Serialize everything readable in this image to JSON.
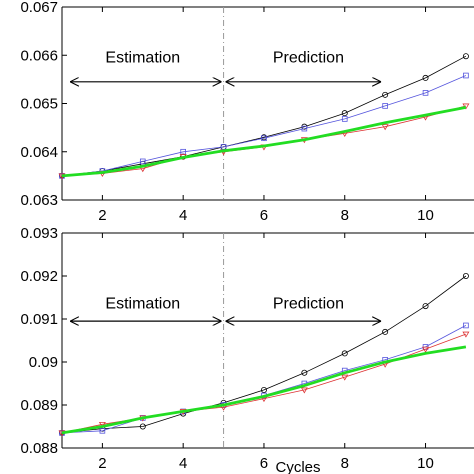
{
  "chart_data": [
    {
      "type": "line",
      "xlim": [
        1,
        11.2
      ],
      "ylim": [
        0.063,
        0.067
      ],
      "xticks": [
        2,
        4,
        6,
        8,
        10
      ],
      "yticks": [
        "0.063",
        "0.064",
        "0.065",
        "0.066",
        "0.067"
      ],
      "ylabel": "",
      "xlabel": "",
      "divider_x": 5,
      "annotations": [
        {
          "text": "Estimation",
          "x": 3.0,
          "y": 0.06585,
          "arrow_from": 1.2,
          "arrow_to": 4.95,
          "arrow_y": 0.06545
        },
        {
          "text": "Prediction",
          "x": 7.1,
          "y": 0.06585,
          "arrow_from": 5.05,
          "arrow_to": 8.9,
          "arrow_y": 0.06545
        }
      ],
      "series": [
        {
          "color": "#000000",
          "marker": "circle",
          "width": 0.8,
          "x": [
            1,
            2,
            3,
            4,
            5,
            6,
            7,
            8,
            9,
            10,
            11
          ],
          "y": [
            0.0635,
            0.0636,
            0.06375,
            0.0639,
            0.0641,
            0.0643,
            0.06452,
            0.0648,
            0.06518,
            0.06553,
            0.06598
          ]
        },
        {
          "color": "#5555dd",
          "marker": "square",
          "width": 0.8,
          "x": [
            1,
            2,
            3,
            4,
            5,
            6,
            7,
            8,
            9,
            10,
            11
          ],
          "y": [
            0.0635,
            0.0636,
            0.0638,
            0.064,
            0.0641,
            0.06428,
            0.06448,
            0.06468,
            0.06495,
            0.06522,
            0.06558
          ]
        },
        {
          "color": "#dd3333",
          "marker": "triangle-down",
          "width": 0.8,
          "x": [
            1,
            2,
            3,
            4,
            5,
            6,
            7,
            8,
            9,
            10,
            11
          ],
          "y": [
            0.0635,
            0.06355,
            0.06365,
            0.0639,
            0.064,
            0.0641,
            0.06425,
            0.06438,
            0.06452,
            0.06472,
            0.06495
          ]
        },
        {
          "color": "#22dd22",
          "marker": "none",
          "width": 2.8,
          "x": [
            1,
            2,
            3,
            4,
            5,
            6,
            7,
            8,
            9,
            10,
            11
          ],
          "y": [
            0.0635,
            0.06357,
            0.0637,
            0.06388,
            0.06402,
            0.06412,
            0.06425,
            0.06442,
            0.0646,
            0.06476,
            0.06492
          ]
        }
      ]
    },
    {
      "type": "line",
      "xlim": [
        1,
        11.2
      ],
      "ylim": [
        0.088,
        0.093
      ],
      "xticks": [
        2,
        4,
        6,
        8,
        10
      ],
      "yticks": [
        "0.088",
        "0.089",
        "0.09",
        "0.091",
        "0.092",
        "0.093"
      ],
      "ylabel": "",
      "xlabel": "Cycles",
      "divider_x": 5,
      "annotations": [
        {
          "text": "Estimation",
          "x": 3.0,
          "y": 0.09125,
          "arrow_from": 1.2,
          "arrow_to": 4.95,
          "arrow_y": 0.09095
        },
        {
          "text": "Prediction",
          "x": 7.1,
          "y": 0.09125,
          "arrow_from": 5.05,
          "arrow_to": 8.9,
          "arrow_y": 0.09095
        }
      ],
      "series": [
        {
          "color": "#000000",
          "marker": "circle",
          "width": 0.8,
          "x": [
            1,
            2,
            3,
            4,
            5,
            6,
            7,
            8,
            9,
            10,
            11
          ],
          "y": [
            0.08835,
            0.08845,
            0.0885,
            0.0888,
            0.08905,
            0.08935,
            0.08975,
            0.0902,
            0.0907,
            0.0913,
            0.092
          ]
        },
        {
          "color": "#5555dd",
          "marker": "square",
          "width": 0.8,
          "x": [
            1,
            2,
            3,
            4,
            5,
            6,
            7,
            8,
            9,
            10,
            11
          ],
          "y": [
            0.08835,
            0.0884,
            0.0887,
            0.08885,
            0.089,
            0.08922,
            0.0895,
            0.0898,
            0.09005,
            0.09035,
            0.09085
          ]
        },
        {
          "color": "#dd3333",
          "marker": "triangle-down",
          "width": 0.8,
          "x": [
            1,
            2,
            3,
            4,
            5,
            6,
            7,
            8,
            9,
            10,
            11
          ],
          "y": [
            0.08835,
            0.08855,
            0.0887,
            0.08885,
            0.08895,
            0.08915,
            0.08935,
            0.08965,
            0.08995,
            0.0903,
            0.09065
          ]
        },
        {
          "color": "#22dd22",
          "marker": "none",
          "width": 2.8,
          "x": [
            1,
            2,
            3,
            4,
            5,
            6,
            7,
            8,
            9,
            10,
            11
          ],
          "y": [
            0.08835,
            0.0885,
            0.0887,
            0.08885,
            0.089,
            0.0892,
            0.08945,
            0.08975,
            0.09,
            0.0902,
            0.09035
          ]
        }
      ]
    }
  ]
}
